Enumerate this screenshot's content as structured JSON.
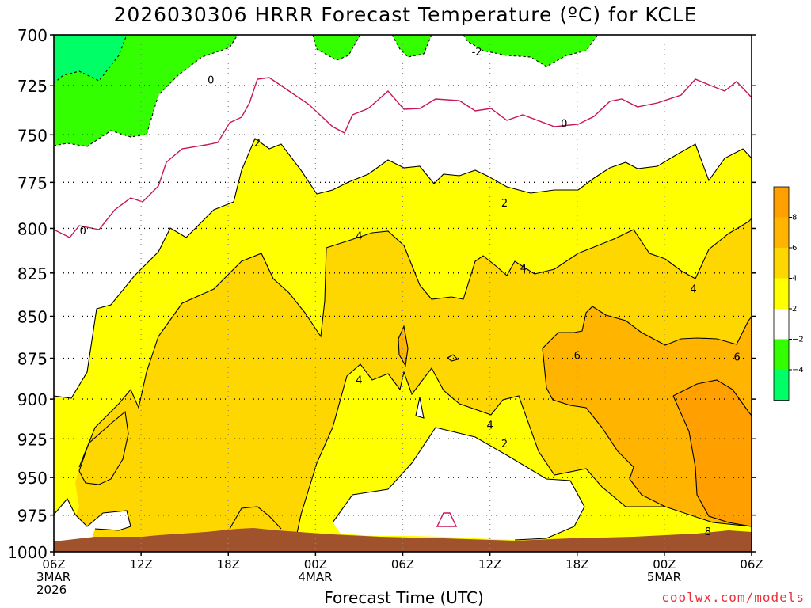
{
  "title": "2026030306 HRRR Forecast Temperature (ºC) for KCLE",
  "credit": "coolwx.com/models",
  "chart_data": {
    "type": "contour",
    "title": "2026030306 HRRR Forecast Temperature (ºC) for KCLE",
    "xlabel": "Forecast Time (UTC)",
    "ylabel": "",
    "ylim": [
      1000,
      700
    ],
    "y_log_pressure": true,
    "grid": true,
    "x_range_hours": [
      0,
      48
    ],
    "x_ticks": [
      {
        "hour": 0,
        "labels": [
          "06Z",
          "3MAR",
          "2026"
        ]
      },
      {
        "hour": 6,
        "labels": [
          "12Z"
        ]
      },
      {
        "hour": 12,
        "labels": [
          "18Z"
        ]
      },
      {
        "hour": 18,
        "labels": [
          "00Z",
          "4MAR"
        ]
      },
      {
        "hour": 24,
        "labels": [
          "06Z"
        ]
      },
      {
        "hour": 30,
        "labels": [
          "12Z"
        ]
      },
      {
        "hour": 36,
        "labels": [
          "18Z"
        ]
      },
      {
        "hour": 42,
        "labels": [
          "00Z",
          "5MAR"
        ]
      },
      {
        "hour": 48,
        "labels": [
          "06Z"
        ]
      }
    ],
    "y_ticks": [
      700,
      725,
      750,
      775,
      800,
      825,
      850,
      875,
      900,
      925,
      950,
      975,
      1000
    ],
    "colorbar": {
      "bands": [
        {
          "from": 8,
          "to": 10,
          "color": "#ff9f00"
        },
        {
          "from": 6,
          "to": 8,
          "color": "#ffb400"
        },
        {
          "from": 4,
          "to": 6,
          "color": "#ffd700"
        },
        {
          "from": 2,
          "to": 4,
          "color": "#ffff00"
        },
        {
          "from": -2,
          "to": 2,
          "color": "#ffffff"
        },
        {
          "from": -4,
          "to": -2,
          "color": "#33ff00"
        },
        {
          "from": -6,
          "to": -4,
          "color": "#00ff66"
        }
      ],
      "labels": [
        "8",
        "6",
        "4",
        "2",
        "−2",
        "−4"
      ]
    },
    "contour_labels": [
      {
        "value": "0",
        "hour": 2.0,
        "p": 801
      },
      {
        "value": "0",
        "hour": 10.8,
        "p": 722
      },
      {
        "value": "0",
        "hour": 35.1,
        "p": 744
      },
      {
        "value": "-2",
        "hour": 29.1,
        "p": 708
      },
      {
        "value": "2",
        "hour": 14.0,
        "p": 754
      },
      {
        "value": "2",
        "hour": 31.0,
        "p": 786
      },
      {
        "value": "2",
        "hour": 31.0,
        "p": 928
      },
      {
        "value": "4",
        "hour": 21.0,
        "p": 804
      },
      {
        "value": "4",
        "hour": 32.3,
        "p": 822
      },
      {
        "value": "4",
        "hour": 44.0,
        "p": 834
      },
      {
        "value": "4",
        "hour": 21.0,
        "p": 888
      },
      {
        "value": "4",
        "hour": 30.0,
        "p": 916
      },
      {
        "value": "6",
        "hour": 36.0,
        "p": 873
      },
      {
        "value": "6",
        "hour": 47.0,
        "p": 874
      },
      {
        "value": "8",
        "hour": 45.0,
        "p": 986
      }
    ],
    "terrain_color": "#a0522d"
  }
}
